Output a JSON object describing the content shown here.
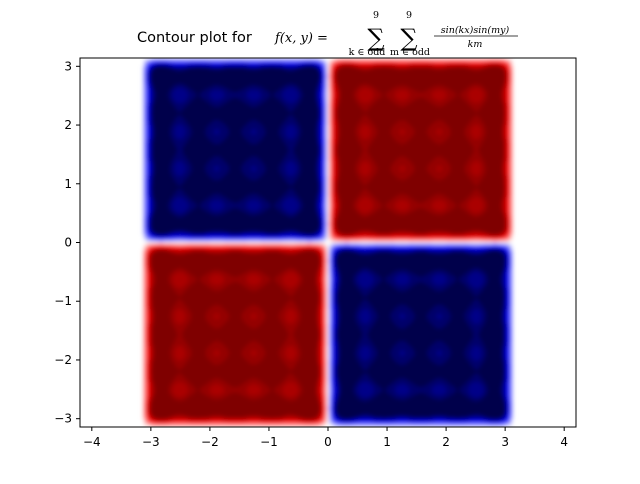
{
  "chart_data": {
    "type": "heatmap",
    "title": {
      "prefix": "Contour plot for",
      "func": "f(x, y) =",
      "sigma": "∑",
      "upper_k": "9",
      "lower_k": "k ∈ odd",
      "upper_m": "9",
      "lower_m": "m ∈ odd",
      "numerator": "sin(kx)sin(my)",
      "denominator": "km"
    },
    "function": "sum over odd k,m <= 9 of sin(kx)sin(my)/(km)",
    "k_values": [
      1,
      3,
      5,
      7,
      9
    ],
    "m_values": [
      1,
      3,
      5,
      7,
      9
    ],
    "domain_x": [
      -3.14159,
      3.14159
    ],
    "domain_y": [
      -3.14159,
      3.14159
    ],
    "xlim": [
      -4.2,
      4.2
    ],
    "ylim": [
      -3.14159,
      3.14159
    ],
    "x_ticks": [
      -4,
      -3,
      -2,
      -1,
      0,
      1,
      2,
      3,
      4
    ],
    "y_ticks": [
      -3,
      -2,
      -1,
      0,
      1,
      2,
      3
    ],
    "x_tick_labels": [
      "−4",
      "−3",
      "−2",
      "−1",
      "0",
      "1",
      "2",
      "3",
      "4"
    ],
    "y_tick_labels": [
      "−3",
      "−2",
      "−1",
      "0",
      "1",
      "2",
      "3"
    ],
    "colormap": "seismic",
    "colors": {
      "negative": "#00004c",
      "zero": "#ffffff",
      "positive": "#7f0000"
    },
    "grid": false,
    "legend": "none"
  }
}
